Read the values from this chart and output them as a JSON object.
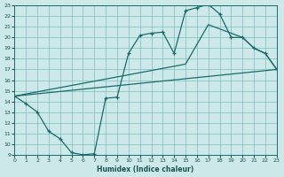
{
  "xlabel": "Humidex (Indice chaleur)",
  "xlim": [
    0,
    23
  ],
  "ylim": [
    9,
    23
  ],
  "xticks": [
    0,
    1,
    2,
    3,
    4,
    5,
    6,
    7,
    8,
    9,
    10,
    11,
    12,
    13,
    14,
    15,
    16,
    17,
    18,
    19,
    20,
    21,
    22,
    23
  ],
  "yticks": [
    9,
    10,
    11,
    12,
    13,
    14,
    15,
    16,
    17,
    18,
    19,
    20,
    21,
    22,
    23
  ],
  "bg_color": "#cce8e8",
  "grid_color": "#7bbcbc",
  "line_color": "#1a6b6b",
  "line1_x": [
    0,
    1,
    2,
    3,
    4,
    5,
    6,
    7,
    8,
    9,
    10,
    11,
    12,
    13,
    14,
    15,
    16,
    17,
    18,
    19,
    20,
    21,
    22,
    23
  ],
  "line1_y": [
    14.5,
    13.8,
    13.0,
    11.2,
    10.5,
    9.2,
    9.0,
    9.1,
    14.3,
    14.4,
    18.5,
    20.2,
    20.4,
    20.5,
    18.5,
    22.5,
    22.8,
    23.1,
    22.2,
    20.0,
    20.0,
    19.0,
    18.5,
    17.0
  ],
  "line2_x": [
    0,
    10,
    15,
    17,
    20,
    21,
    22,
    23
  ],
  "line2_y": [
    14.5,
    16.5,
    17.5,
    21.2,
    20.0,
    19.0,
    18.5,
    17.0
  ],
  "line3_x": [
    0,
    23
  ],
  "line3_y": [
    14.5,
    17.0
  ]
}
